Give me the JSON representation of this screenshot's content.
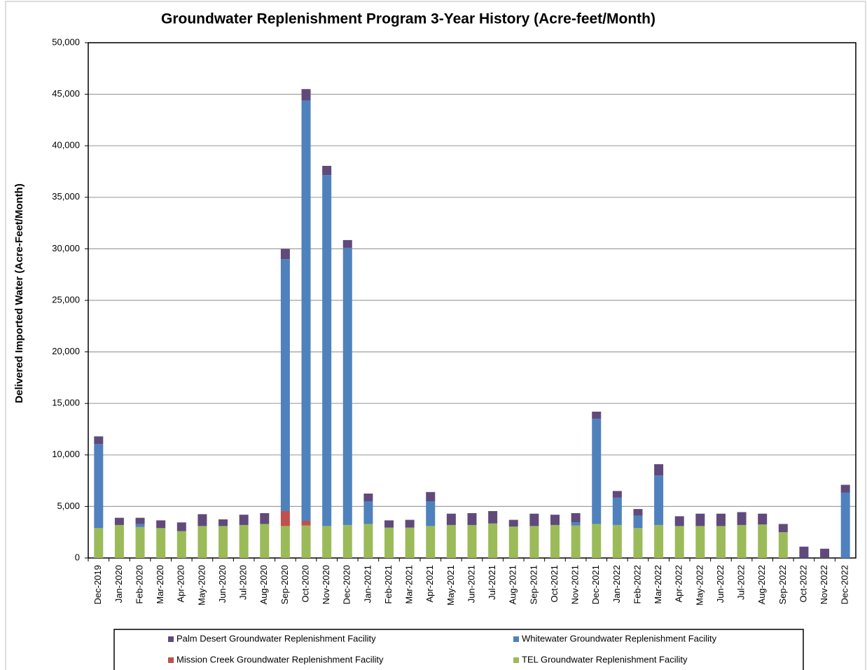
{
  "chart_data": {
    "type": "stacked_bar",
    "title": "Groundwater Replenishment Program 3-Year History  (Acre-feet/Month)",
    "y_label": "Delivered Imported Water (Acre-Feet/Month)",
    "categories": [
      "Dec-2019",
      "Jan-2020",
      "Feb-2020",
      "Mar-2020",
      "Apr-2020",
      "May-2020",
      "Jun-2020",
      "Jul-2020",
      "Aug-2020",
      "Sep-2020",
      "Oct-2020",
      "Nov-2020",
      "Dec-2020",
      "Jan-2021",
      "Feb-2021",
      "Mar-2021",
      "Apr-2021",
      "May-2021",
      "Jun-2021",
      "Jul-2021",
      "Aug-2021",
      "Sep-2021",
      "Oct-2021",
      "Nov-2021",
      "Dec-2021",
      "Jan-2022",
      "Feb-2022",
      "Mar-2022",
      "Apr-2022",
      "May-2022",
      "Jun-2022",
      "Jul-2022",
      "Aug-2022",
      "Sep-2022",
      "Oct-2022",
      "Nov-2022",
      "Dec-2022"
    ],
    "series": [
      {
        "name": "Palm Desert Groundwater Replenishment Facility",
        "color": "#604a7b",
        "values": [
          750,
          700,
          600,
          750,
          850,
          1150,
          650,
          1000,
          1050,
          1000,
          1100,
          900,
          750,
          750,
          700,
          750,
          900,
          1100,
          1150,
          1200,
          650,
          1200,
          1000,
          900,
          700,
          650,
          650,
          1100,
          950,
          1200,
          1200,
          1250,
          1050,
          800,
          1100,
          900,
          750
        ]
      },
      {
        "name": "Whitewater Groundwater Replenishment Facility",
        "color": "#4f81bd",
        "values": [
          8150,
          0,
          300,
          0,
          0,
          0,
          0,
          0,
          0,
          24450,
          40800,
          34050,
          26900,
          2200,
          0,
          0,
          2400,
          0,
          0,
          0,
          0,
          0,
          0,
          300,
          10200,
          2650,
          1200,
          4800,
          0,
          0,
          0,
          0,
          0,
          0,
          0,
          0,
          6350
        ]
      },
      {
        "name": "Mission Creek Groundwater Replenishment Facility",
        "color": "#c0504d",
        "values": [
          0,
          0,
          0,
          0,
          0,
          0,
          0,
          0,
          0,
          1450,
          450,
          0,
          0,
          0,
          0,
          0,
          0,
          0,
          0,
          0,
          0,
          0,
          0,
          0,
          0,
          0,
          0,
          0,
          0,
          0,
          0,
          0,
          0,
          0,
          0,
          0,
          0
        ]
      },
      {
        "name": "TEL Groundwater Replenishment Facility",
        "color": "#9bbb59",
        "values": [
          2900,
          3200,
          3000,
          2900,
          2600,
          3100,
          3100,
          3200,
          3300,
          3100,
          3150,
          3100,
          3200,
          3300,
          2950,
          2950,
          3100,
          3200,
          3200,
          3350,
          3050,
          3100,
          3200,
          3150,
          3300,
          3200,
          2900,
          3200,
          3100,
          3100,
          3100,
          3200,
          3250,
          2500,
          0,
          0,
          0
        ]
      }
    ],
    "ylim": [
      0,
      50000
    ],
    "yticks": [
      0,
      {
        "value": 5000,
        "label": "5,000"
      },
      {
        "value": 10000,
        "label": "10,000"
      },
      {
        "value": 15000,
        "label": "15,000"
      },
      {
        "value": 20000,
        "label": "20,000"
      },
      {
        "value": 25000,
        "label": "25,000"
      },
      {
        "value": 30000,
        "label": "30,000"
      },
      {
        "value": 35000,
        "label": "35,000"
      },
      {
        "value": 40000,
        "label": "40,000"
      },
      {
        "value": 45000,
        "label": "45,000"
      },
      {
        "value": 50000,
        "label": "50,000"
      }
    ],
    "grid": true,
    "legend": "bottom"
  }
}
